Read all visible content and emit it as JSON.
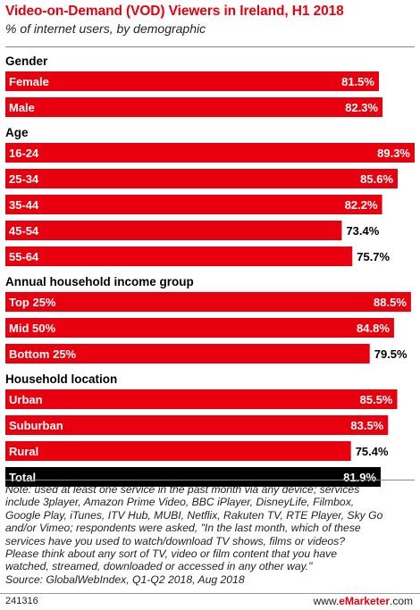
{
  "header": {
    "title": "Video-on-Demand (VOD) Viewers in Ireland, H1 2018",
    "subtitle": "% of internet users, by demographic"
  },
  "footer": {
    "note_lines": [
      "Note: used at least one service in the past month via any device; services",
      "include 3player, Amazon Prime Video, BBC iPlayer, DisneyLife, Filmbox,",
      "Google Play, iTunes, ITV Hub, MUBI, Netflix, Rakuten TV, RTE Player, Sky Go",
      "and/or Vimeo; respondents were asked, \"In the last month, which of these",
      "services have you used to watch/download TV shows, films or videos?",
      "Please think about any sort of TV, video or film content that you have",
      "watched, streamed, downloaded or accessed in any other way.\"",
      "Source: GlobalWebIndex, Q1-Q2 2018, Aug 2018"
    ],
    "chart_id": "241316",
    "brand_prefix": "www.",
    "brand_name": "eMarketer",
    "brand_suffix": ".com"
  },
  "colors": {
    "bar": "#e8000e",
    "total_bar": "#000000",
    "bar_text": "#ffffff"
  },
  "chart_data": {
    "type": "bar",
    "orientation": "horizontal",
    "unit": "%",
    "xlim": [
      0,
      89.3
    ],
    "grid": false,
    "groups": [
      {
        "name": "Gender",
        "items": [
          {
            "label": "Female",
            "value": 81.5
          },
          {
            "label": "Male",
            "value": 82.3
          }
        ]
      },
      {
        "name": "Age",
        "items": [
          {
            "label": "16-24",
            "value": 89.3
          },
          {
            "label": "25-34",
            "value": 85.6
          },
          {
            "label": "35-44",
            "value": 82.2
          },
          {
            "label": "45-54",
            "value": 73.4
          },
          {
            "label": "55-64",
            "value": 75.7
          }
        ]
      },
      {
        "name": "Annual household income group",
        "items": [
          {
            "label": "Top 25%",
            "value": 88.5
          },
          {
            "label": "Mid 50%",
            "value": 84.8
          },
          {
            "label": "Bottom 25%",
            "value": 79.5
          }
        ]
      },
      {
        "name": "Household location",
        "items": [
          {
            "label": "Urban",
            "value": 85.5
          },
          {
            "label": "Suburban",
            "value": 83.5
          },
          {
            "label": "Rural",
            "value": 75.4
          }
        ]
      }
    ],
    "total": {
      "label": "Total",
      "value": 81.9
    }
  }
}
